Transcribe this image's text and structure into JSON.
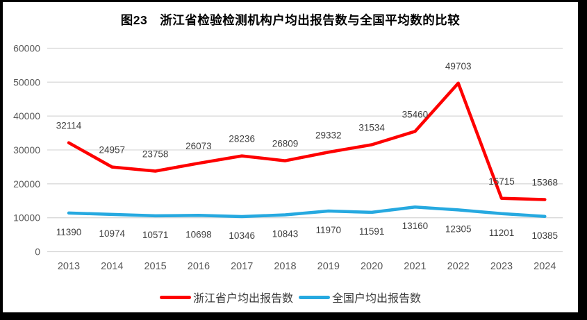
{
  "chart_data": {
    "type": "line",
    "title": "图23　浙江省检验检测机构户均出报告数与全国平均数的比较",
    "categories": [
      "2013",
      "2014",
      "2015",
      "2016",
      "2017",
      "2018",
      "2019",
      "2020",
      "2021",
      "2022",
      "2023",
      "2024"
    ],
    "series": [
      {
        "name": "浙江省户均出报告数",
        "color": "#fe0000",
        "label_position": "above",
        "values": [
          32114,
          24957,
          23758,
          26073,
          28236,
          26809,
          29332,
          31534,
          35460,
          49703,
          15715,
          15368
        ]
      },
      {
        "name": "全国户均出报告数",
        "color": "#26a9e0",
        "label_position": "below",
        "values": [
          11390,
          10974,
          10571,
          10698,
          10346,
          10843,
          11970,
          11591,
          13160,
          12305,
          11201,
          10385
        ]
      }
    ],
    "ylim": [
      0,
      60000
    ],
    "yticks": [
      0,
      10000,
      20000,
      30000,
      40000,
      50000,
      60000
    ],
    "grid": true,
    "legend_position": "bottom",
    "colors": {
      "gridline": "#d9d9d9",
      "axis_text": "#595959",
      "label_text": "#404040",
      "title_text": "#000000",
      "frame_border": "#000000",
      "background": "#ffffff"
    }
  }
}
